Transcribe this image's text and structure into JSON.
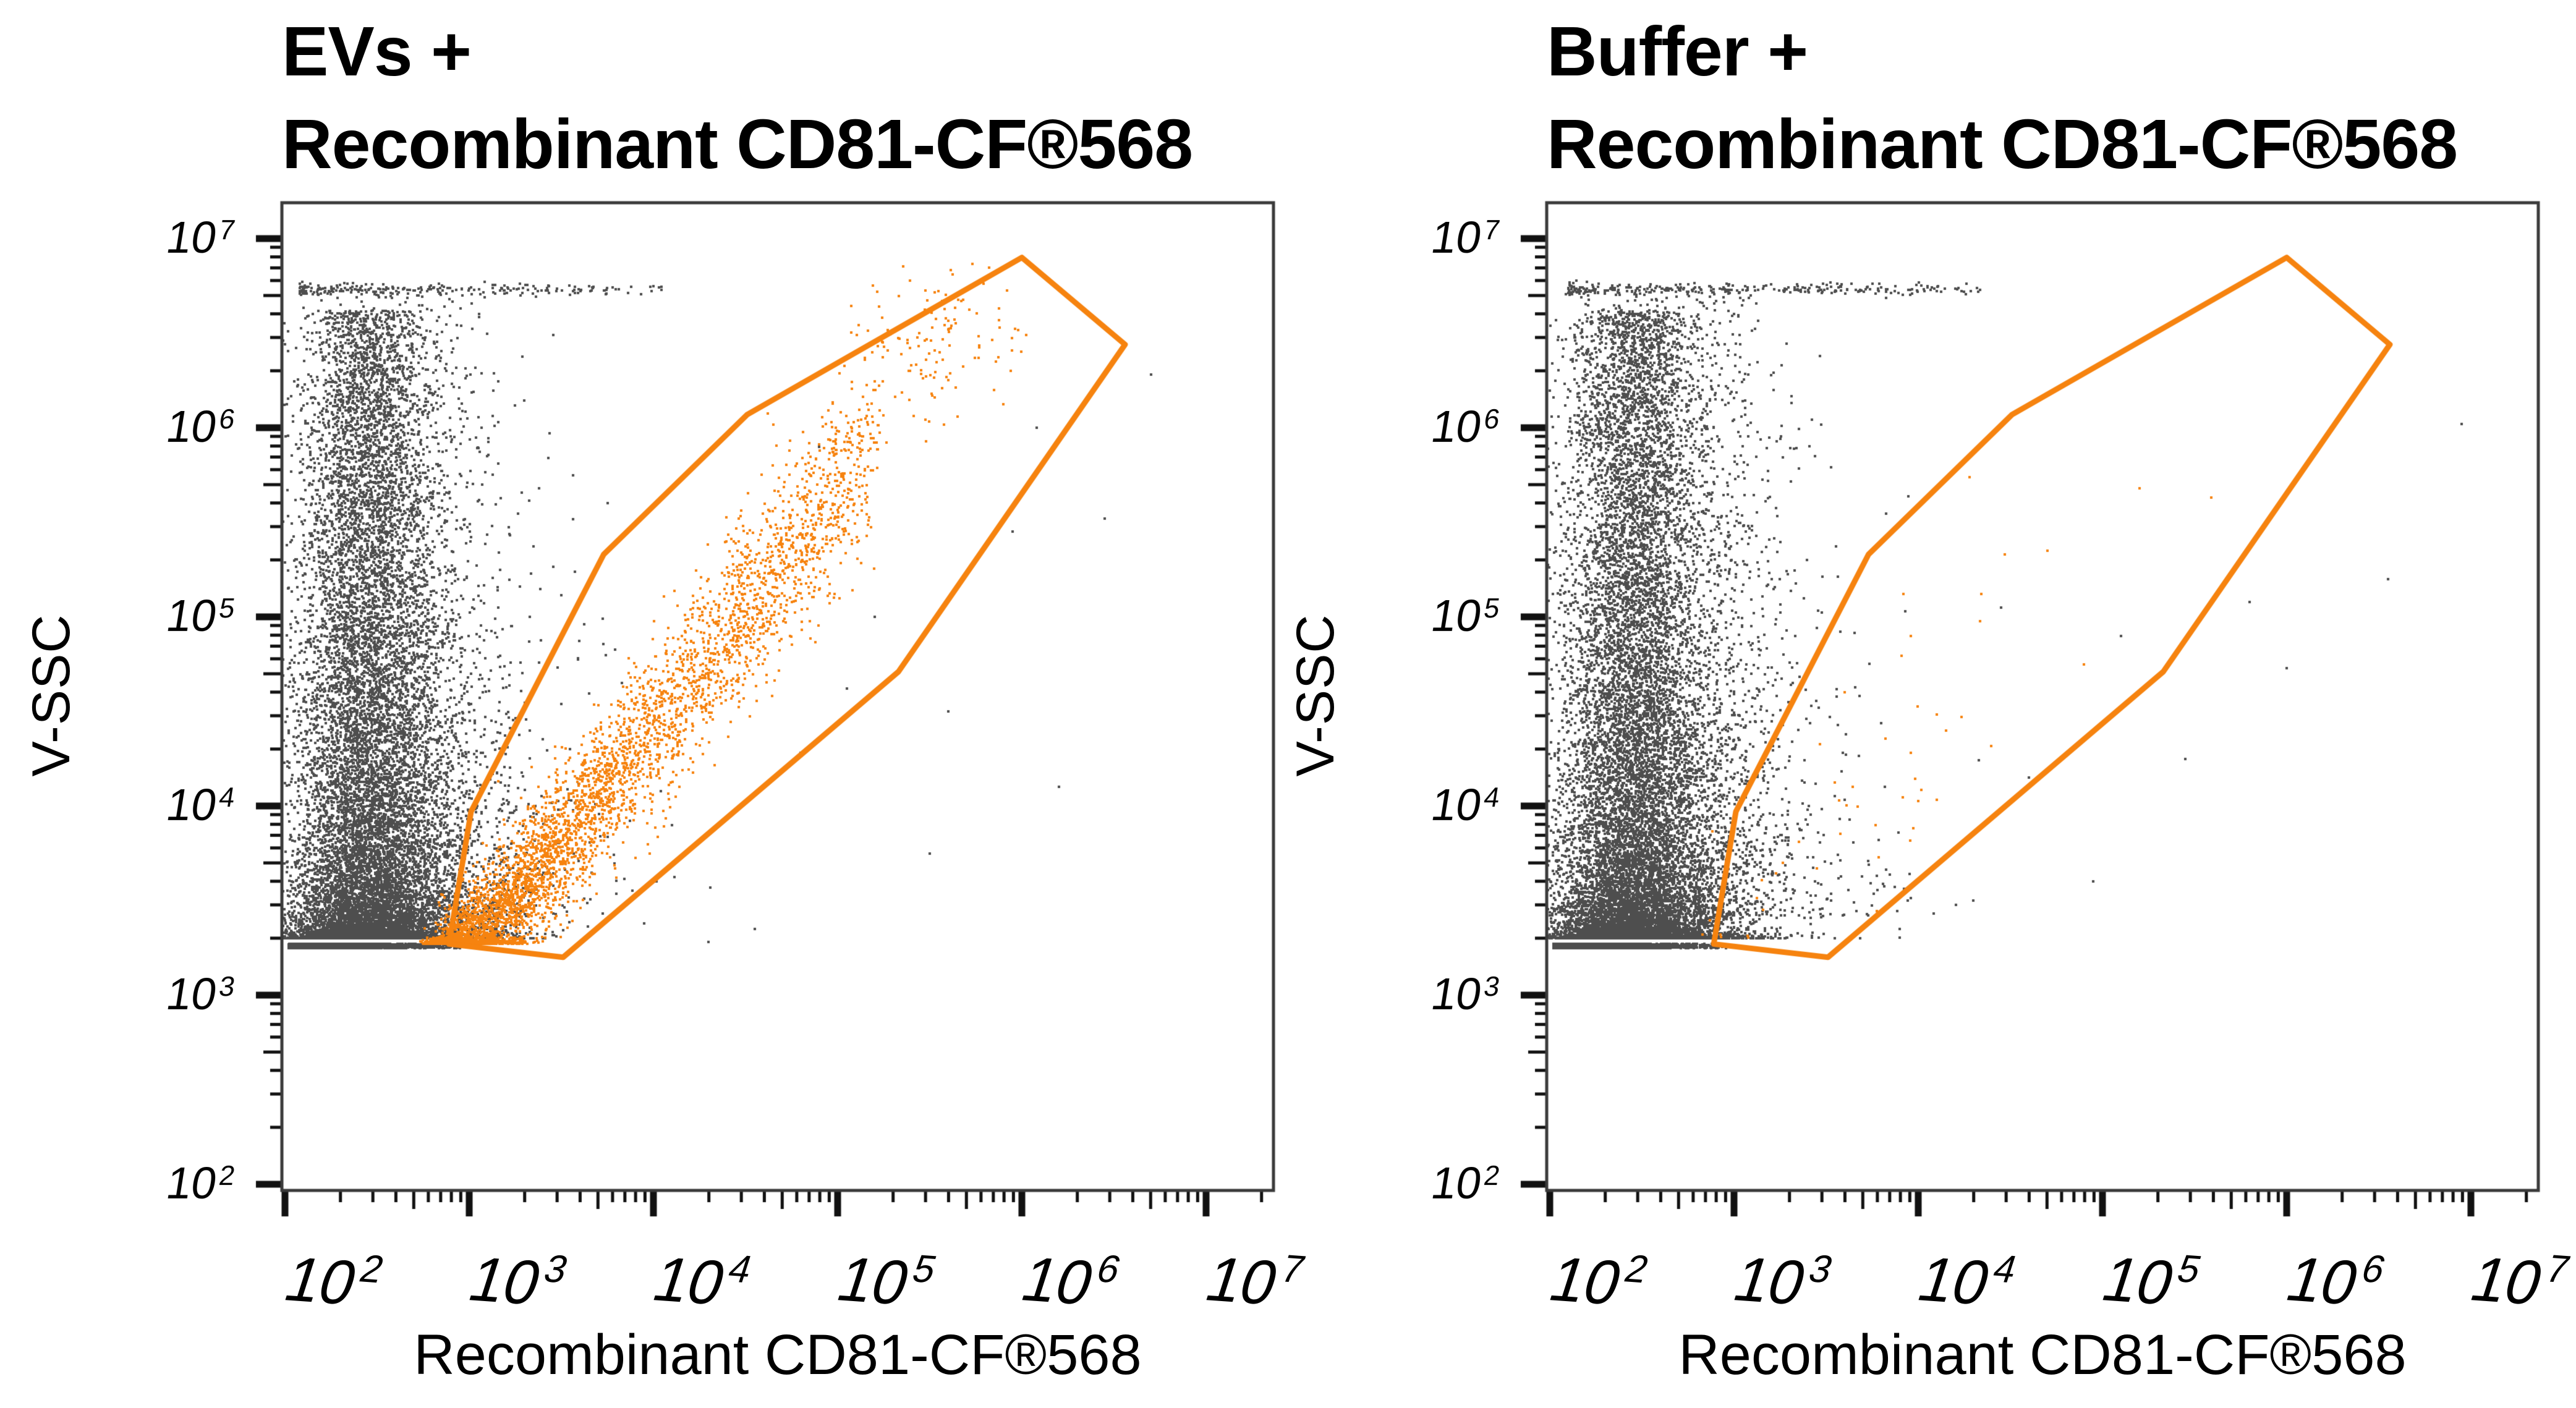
{
  "colors": {
    "gray_points": "#4e4e4e",
    "orange_points": "#f6830f",
    "gate_line": "#f6830f",
    "frame": "#3a3a3a",
    "ticks": "#111111",
    "text": "#000000",
    "background": "#ffffff"
  },
  "tick_label_base": "10",
  "chart_data": [
    {
      "type": "scatter",
      "title_lines": [
        "EVs +",
        "Recombinant CD81-CF®568"
      ],
      "xlabel": "Recombinant CD81-CF®568",
      "ylabel": "V-SSC",
      "xscale": "log",
      "yscale": "log",
      "xlim_log10": [
        1.983,
        7.366
      ],
      "ylim_log10": [
        1.967,
        7.19
      ],
      "x_tick_exponents": [
        2,
        3,
        4,
        5,
        6,
        7
      ],
      "y_tick_exponents": [
        2,
        3,
        4,
        5,
        6,
        7
      ],
      "minor_tick_mantissas": [
        2,
        3,
        4,
        5,
        6,
        7,
        8,
        9
      ],
      "grid": false,
      "legend": false,
      "gate": {
        "color_key": "gate_line",
        "vertices_log10": [
          [
            2.89,
            3.27
          ],
          [
            3.01,
            3.97
          ],
          [
            3.73,
            5.33
          ],
          [
            4.51,
            6.07
          ],
          [
            6.0,
            6.9
          ],
          [
            6.56,
            6.44
          ],
          [
            5.33,
            4.71
          ],
          [
            3.51,
            3.2
          ]
        ]
      },
      "populations": [
        {
          "kind": "floor",
          "color_key": "gray_points",
          "seed": 11,
          "n": 2600,
          "x0": 2.02,
          "sx": 0.36,
          "xmax": 2.96,
          "y": 3.26,
          "jitter": 0.012
        },
        {
          "kind": "plume",
          "color_key": "gray_points",
          "seed": 12,
          "n": 13500,
          "y0": 3.3,
          "y1": 6.62,
          "pow": 2.6,
          "cx": 2.42,
          "sx0": 0.205,
          "sx1": 0.155,
          "tailP": 0.32,
          "tailS": 0.3
        },
        {
          "kind": "plume",
          "color_key": "gray_points",
          "seed": 13,
          "n": 1900,
          "y0": 3.42,
          "y1": 6.72,
          "pow": 1.5,
          "cx": 2.52,
          "sx0": 0.3,
          "sx1": 0.27,
          "tailP": 0.5,
          "tailS": 0.5
        },
        {
          "kind": "row",
          "color_key": "gray_points",
          "seed": 14,
          "n": 240,
          "y": 6.73,
          "jitter": 0.015,
          "x0": 2.08,
          "x1": 4.05,
          "pow": 1.7
        },
        {
          "kind": "points",
          "color_key": "gray_points",
          "pts": [
            [
              4.1,
              3.9
            ],
            [
              4.55,
              3.35
            ],
            [
              5.05,
              4.62
            ],
            [
              5.95,
              5.45
            ],
            [
              6.45,
              5.52
            ],
            [
              4.8,
              4.28
            ],
            [
              5.5,
              3.75
            ],
            [
              6.08,
              6.0
            ],
            [
              3.95,
              3.38
            ],
            [
              4.3,
              3.28
            ],
            [
              5.2,
              5.0
            ],
            [
              6.7,
              6.28
            ],
            [
              4.9,
              5.9
            ],
            [
              5.6,
              4.5
            ],
            [
              6.2,
              4.1
            ],
            [
              3.75,
              5.6
            ]
          ]
        },
        {
          "kind": "band",
          "color_key": "orange_points",
          "seed": 15,
          "n": 6000,
          "x0": 2.88,
          "len": 2.32,
          "pow": 2.8,
          "xjit": 0.05,
          "slope": 1.22,
          "intercept": -0.45,
          "sy0": 0.15,
          "sy1": 0.12,
          "yfloor": 3.27
        },
        {
          "kind": "blob",
          "color_key": "orange_points",
          "seed": 16,
          "n": 130,
          "cx": 5.55,
          "cy": 6.45,
          "sx": 0.22,
          "sy": 0.22,
          "ymax": 6.92
        }
      ]
    },
    {
      "type": "scatter",
      "title_lines": [
        "Buffer +",
        "Recombinant CD81-CF®568"
      ],
      "xlabel": "Recombinant CD81-CF®568",
      "ylabel": "V-SSC",
      "xscale": "log",
      "yscale": "log",
      "xlim_log10": [
        1.983,
        7.366
      ],
      "ylim_log10": [
        1.967,
        7.19
      ],
      "x_tick_exponents": [
        2,
        3,
        4,
        5,
        6,
        7
      ],
      "y_tick_exponents": [
        2,
        3,
        4,
        5,
        6,
        7
      ],
      "minor_tick_mantissas": [
        2,
        3,
        4,
        5,
        6,
        7,
        8,
        9
      ],
      "grid": false,
      "legend": false,
      "gate": {
        "color_key": "gate_line",
        "vertices_log10": [
          [
            2.89,
            3.27
          ],
          [
            3.01,
            3.97
          ],
          [
            3.73,
            5.33
          ],
          [
            4.51,
            6.07
          ],
          [
            6.0,
            6.9
          ],
          [
            6.56,
            6.44
          ],
          [
            5.33,
            4.71
          ],
          [
            3.51,
            3.2
          ]
        ]
      },
      "populations": [
        {
          "kind": "floor",
          "color_key": "gray_points",
          "seed": 21,
          "n": 2600,
          "x0": 2.02,
          "sx": 0.36,
          "xmax": 2.96,
          "y": 3.26,
          "jitter": 0.012
        },
        {
          "kind": "plume",
          "color_key": "gray_points",
          "seed": 22,
          "n": 13500,
          "y0": 3.3,
          "y1": 6.62,
          "pow": 2.6,
          "cx": 2.42,
          "sx0": 0.205,
          "sx1": 0.155,
          "tailP": 0.32,
          "tailS": 0.3
        },
        {
          "kind": "plume",
          "color_key": "gray_points",
          "seed": 23,
          "n": 2300,
          "y0": 3.42,
          "y1": 6.72,
          "pow": 1.5,
          "cx": 2.55,
          "sx0": 0.32,
          "sx1": 0.27,
          "tailP": 0.5,
          "tailS": 0.55
        },
        {
          "kind": "row",
          "color_key": "gray_points",
          "seed": 24,
          "n": 300,
          "y": 6.73,
          "jitter": 0.015,
          "x0": 2.1,
          "x1": 4.35,
          "pow": 1.45
        },
        {
          "kind": "points",
          "color_key": "gray_points",
          "pts": [
            [
              5.8,
              5.08
            ],
            [
              6.95,
              6.02
            ],
            [
              6.0,
              4.73
            ],
            [
              5.45,
              4.25
            ],
            [
              4.95,
              3.6
            ],
            [
              4.3,
              3.5
            ],
            [
              3.9,
              3.35
            ],
            [
              6.3,
              6.08
            ],
            [
              5.1,
              4.9
            ],
            [
              4.6,
              4.15
            ],
            [
              6.55,
              5.2
            ],
            [
              4.45,
              5.05
            ]
          ]
        },
        {
          "kind": "band",
          "color_key": "orange_points",
          "seed": 26,
          "n": 42,
          "x0": 2.9,
          "len": 1.5,
          "pow": 1.3,
          "xjit": 0.08,
          "slope": 1.05,
          "intercept": 0.15,
          "sy0": 0.3,
          "sy1": 0.1,
          "yfloor": 3.3
        },
        {
          "kind": "points",
          "color_key": "orange_points",
          "pts": [
            [
              4.28,
              5.74
            ],
            [
              3.92,
              5.12
            ],
            [
              5.2,
              5.68
            ],
            [
              4.7,
              5.35
            ],
            [
              4.47,
              5.33
            ],
            [
              3.96,
              4.9
            ],
            [
              5.59,
              5.63
            ],
            [
              3.6,
              4.6
            ],
            [
              4.15,
              4.4
            ],
            [
              4.9,
              4.75
            ]
          ]
        }
      ]
    }
  ]
}
